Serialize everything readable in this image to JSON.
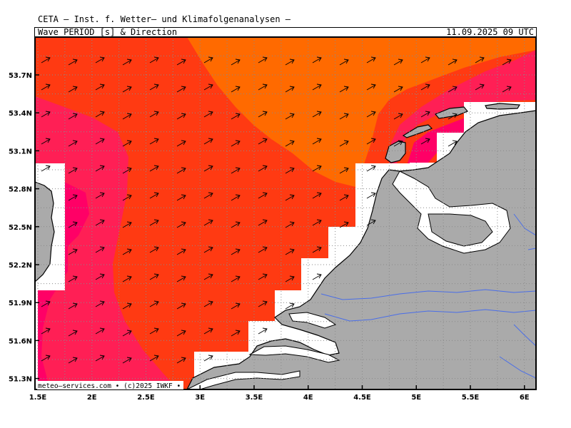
{
  "header": {
    "producer": "CETA – Inst. f. Wetter– und Klimafolgenanalysen –",
    "parameter": "Wave_PERIOD_[s]_&_Direction",
    "timestamp": "11.09.2025 09 UTC"
  },
  "map": {
    "lon_labels": [
      "1.5E",
      "2E",
      "2.5E",
      "3E",
      "3.5E",
      "4E",
      "4.5E",
      "5E",
      "5.5E",
      "6E"
    ],
    "lat_labels": [
      "53.7N",
      "53.4N",
      "53.1N",
      "52.8N",
      "52.5N",
      "52.2N",
      "51.9N",
      "51.6N",
      "51.3N"
    ],
    "lon_values": [
      1.5,
      2,
      2.5,
      3,
      3.5,
      4,
      4.5,
      5,
      5.5,
      6
    ],
    "lat_values": [
      53.7,
      53.4,
      53.1,
      52.8,
      52.5,
      52.2,
      51.9,
      51.6,
      51.3
    ],
    "wave_direction": "NE",
    "colors": {
      "long_period": "#ff6a00",
      "mid_period": "#ff3a12",
      "short_period": "#ff1f55",
      "shortest_period": "#ff0066",
      "land": "#aaaaaa",
      "rivers": "#4a6ee8",
      "no_data": "#ffffff"
    }
  },
  "footer": {
    "credit": "meteo–services.com • (c)2025 IWKF • "
  }
}
